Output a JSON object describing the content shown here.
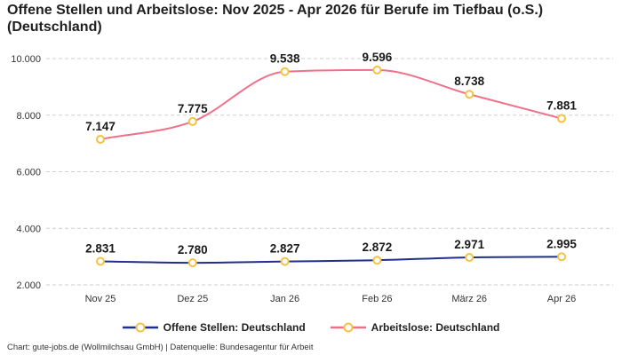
{
  "title": "Offene Stellen und Arbeitslose: Nov 2025 - Apr 2026 für Berufe im Tiefbau (o.S.) (Deutschland)",
  "footer": "Chart: gute-jobs.de (Wollmilchsau GmbH) | Datenquelle: Bundesagentur für Arbeit",
  "chart_data": {
    "type": "line",
    "title": "Offene Stellen und Arbeitslose: Nov 2025 - Apr 2026 für Berufe im Tiefbau (o.S.) (Deutschland)",
    "categories": [
      "Nov 25",
      "Dez 25",
      "Jan 26",
      "Feb 26",
      "März 26",
      "Apr 26"
    ],
    "ylim": [
      2000,
      10000
    ],
    "yticks": [
      2000,
      4000,
      6000,
      8000,
      10000
    ],
    "ytick_labels": [
      "2.000",
      "4.000",
      "6.000",
      "8.000",
      "10.000"
    ],
    "grid": true,
    "legend_position": "bottom",
    "series": [
      {
        "name": "Offene Stellen: Deutschland",
        "color": "#1f2f8a",
        "values": [
          2831,
          2780,
          2827,
          2872,
          2971,
          2995
        ],
        "labels": [
          "2.831",
          "2.780",
          "2.827",
          "2.872",
          "2.971",
          "2.995"
        ]
      },
      {
        "name": "Arbeitslose: Deutschland",
        "color": "#f0708a",
        "values": [
          7147,
          7775,
          9538,
          9596,
          8738,
          7881
        ],
        "labels": [
          "7.147",
          "7.775",
          "9.538",
          "9.596",
          "8.738",
          "7.881"
        ]
      }
    ],
    "marker_color": "#f5c242"
  }
}
